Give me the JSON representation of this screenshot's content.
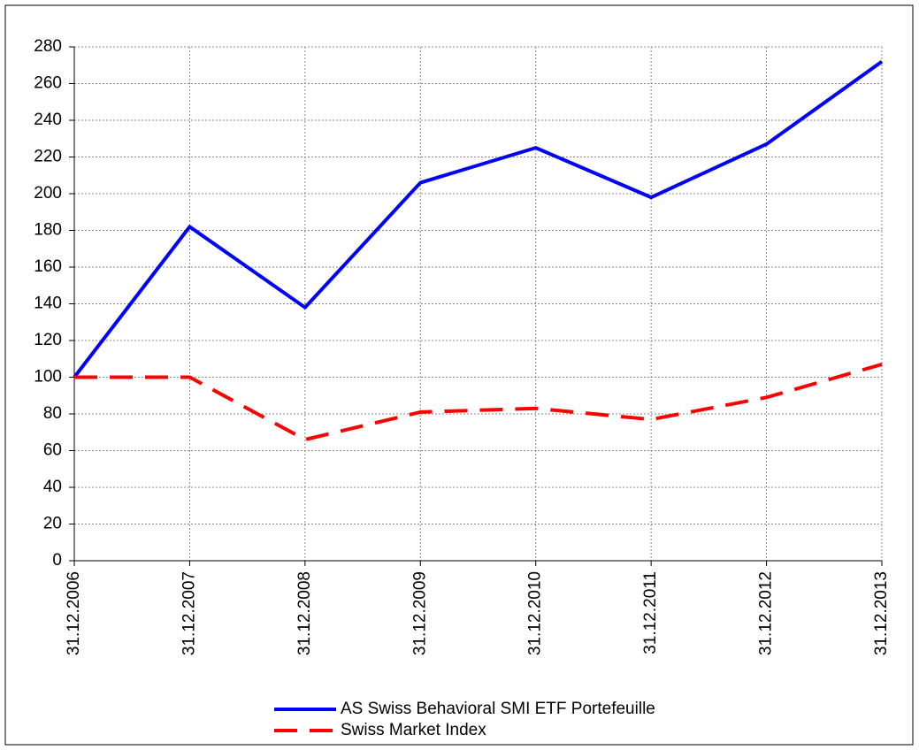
{
  "chart_data": {
    "type": "line",
    "categories": [
      "31.12.2006",
      "31.12.2007",
      "31.12.2008",
      "31.12.2009",
      "31.12.2010",
      "31.12.2011",
      "31.12.2012",
      "31.12.2013"
    ],
    "series": [
      {
        "name": "AS Swiss Behavioral SMI ETF Portefeuille",
        "color": "#0000ff",
        "dashed": false,
        "values": [
          100,
          182,
          138,
          206,
          225,
          198,
          227,
          272
        ]
      },
      {
        "name": "Swiss Market Index",
        "color": "#ff0000",
        "dashed": true,
        "values": [
          100,
          100,
          66,
          81,
          83,
          77,
          89,
          107
        ]
      }
    ],
    "ylim": [
      0,
      280
    ],
    "yticks": [
      0,
      20,
      40,
      60,
      80,
      100,
      120,
      140,
      160,
      180,
      200,
      220,
      240,
      260,
      280
    ],
    "grid": true,
    "legend": "bottom"
  }
}
